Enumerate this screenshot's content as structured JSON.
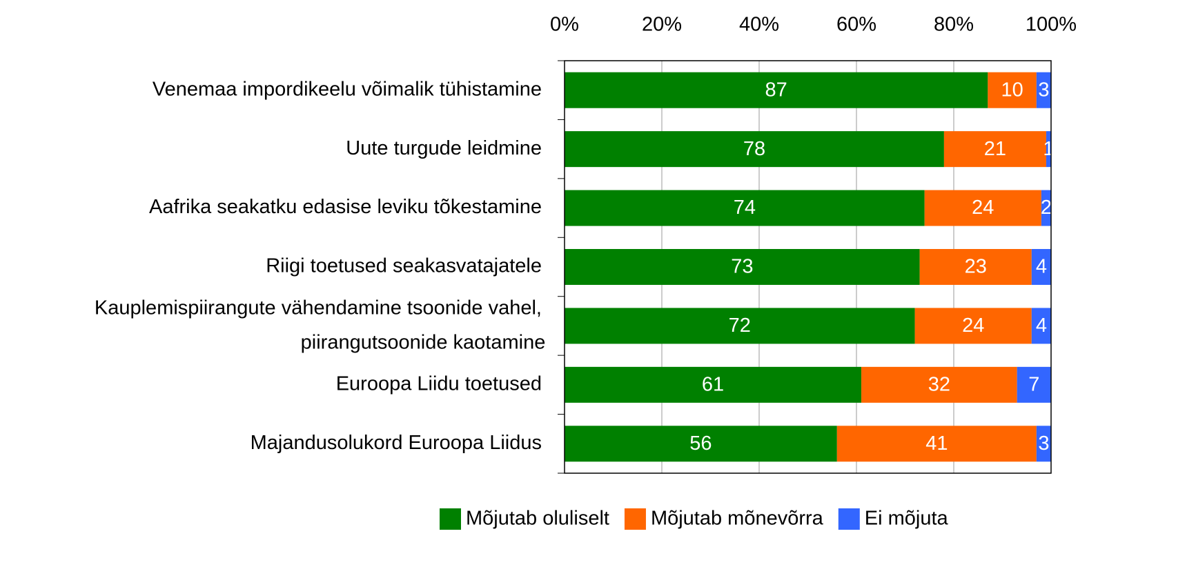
{
  "chart_data": {
    "type": "stacked_barh",
    "categories": [
      "Venemaa impordikeelu võimalik tühistamine",
      "Uute turgude leidmine",
      "Aafrika seakatku edasise leviku tõkestamine",
      "Riigi toetused seakasvatajatele",
      "Kauplemispiirangute vähendamine tsoonide vahel,\npiirangutsoonide kaotamine",
      "Euroopa Liidu toetused",
      "Majandusolukord Euroopa Liidus"
    ],
    "series": [
      {
        "name": "Mõjutab oluliselt",
        "color": "#008000",
        "values": [
          87,
          78,
          74,
          73,
          72,
          61,
          56
        ]
      },
      {
        "name": "Mõjutab mõnevõrra",
        "color": "#ff6600",
        "values": [
          10,
          21,
          24,
          23,
          24,
          32,
          41
        ]
      },
      {
        "name": "Ei mõjuta",
        "color": "#3366ff",
        "values": [
          3,
          1,
          2,
          4,
          4,
          7,
          3
        ]
      }
    ],
    "xlim": [
      0,
      100
    ],
    "xticks": [
      {
        "value": 0,
        "label": "0%"
      },
      {
        "value": 20,
        "label": "20%"
      },
      {
        "value": 40,
        "label": "40%"
      },
      {
        "value": 60,
        "label": "60%"
      },
      {
        "value": 80,
        "label": "80%"
      },
      {
        "value": 100,
        "label": "100%"
      }
    ],
    "grid": true,
    "legend": "bottom"
  }
}
